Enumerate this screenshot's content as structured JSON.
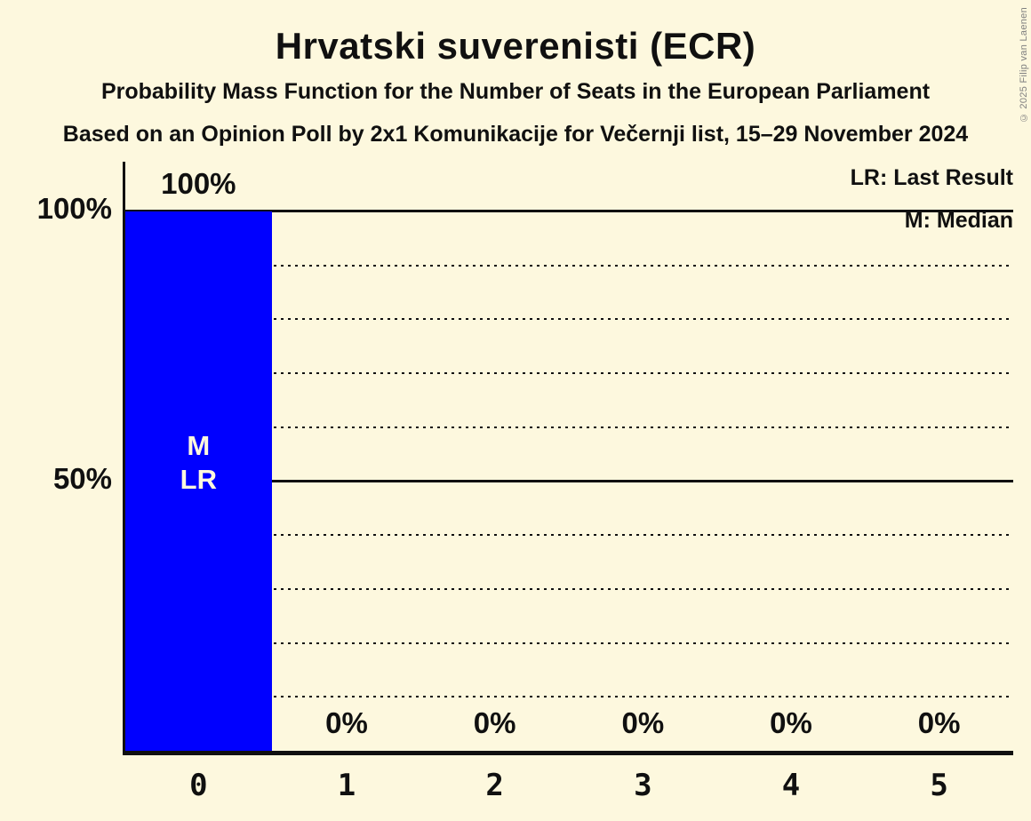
{
  "header": {
    "title": "Hrvatski suverenisti (ECR)",
    "subtitle1": "Probability Mass Function for the Number of Seats in the European Parliament",
    "subtitle2": "Based on an Opinion Poll by 2x1 Komunikacije for Večernji list, 15–29 November 2024",
    "copyright": "© 2025 Filip van Laenen"
  },
  "legend": {
    "lr": "LR: Last Result",
    "m": "M: Median"
  },
  "chart_data": {
    "type": "bar",
    "title": "Hrvatski suverenisti (ECR)",
    "xlabel": "",
    "ylabel": "",
    "categories": [
      "0",
      "1",
      "2",
      "3",
      "4",
      "5"
    ],
    "values": [
      100,
      0,
      0,
      0,
      0,
      0
    ],
    "value_labels": [
      "100%",
      "0%",
      "0%",
      "0%",
      "0%",
      "0%"
    ],
    "annotations": [
      {
        "bar": 0,
        "lines": [
          "M",
          "LR"
        ]
      }
    ],
    "y_axis": {
      "range": [
        0,
        100
      ],
      "ticks": [
        {
          "value": 100,
          "label": "100%"
        },
        {
          "value": 50,
          "label": "50%"
        }
      ]
    },
    "gridlines": {
      "solid": [
        100,
        50
      ],
      "dotted": [
        90,
        80,
        70,
        60,
        40,
        30,
        20,
        10
      ]
    },
    "legend_position": "top-right",
    "colors": {
      "bar": "#0000ff",
      "background": "#fdf8de",
      "text": "#101010",
      "bar_label_text": "#fdf8de",
      "copyright": "#808080"
    }
  }
}
